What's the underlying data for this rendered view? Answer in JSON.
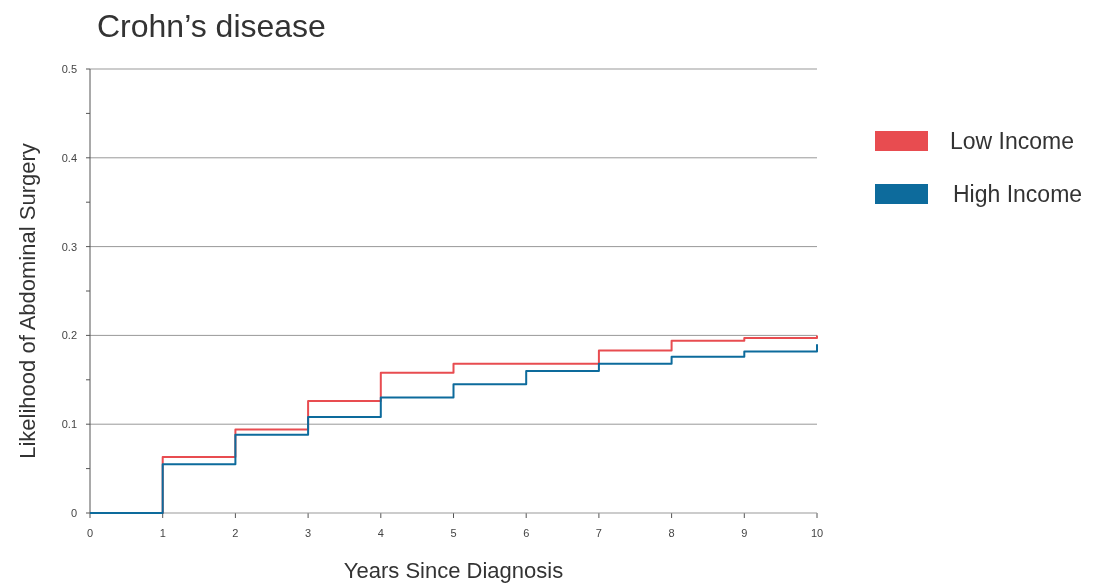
{
  "chart_data": {
    "type": "step",
    "title": "Crohn’s disease",
    "xlabel": "Years Since Diagnosis",
    "ylabel": "Likelihood of Abdominal Surgery",
    "x": [
      0,
      1,
      2,
      3,
      4,
      5,
      6,
      7,
      8,
      9,
      10,
      10
    ],
    "series": [
      {
        "name": "Low Income",
        "color": "#e84c50",
        "values": [
          0,
          0.063,
          0.094,
          0.126,
          0.158,
          0.168,
          0.168,
          0.183,
          0.194,
          0.197,
          0.197,
          0.2
        ]
      },
      {
        "name": "High Income",
        "color": "#0d6b9c",
        "values": [
          0,
          0.055,
          0.088,
          0.108,
          0.13,
          0.145,
          0.16,
          0.168,
          0.176,
          0.182,
          0.182,
          0.19
        ]
      }
    ],
    "xlim": [
      0,
      10
    ],
    "xticks": [
      0,
      1,
      2,
      3,
      4,
      5,
      6,
      7,
      8,
      9,
      10
    ],
    "ylim": [
      0,
      0.5
    ],
    "yticks": [
      0,
      {
        "value": 0.05,
        "label": null
      },
      0.1,
      {
        "value": 0.15,
        "label": null
      },
      0.2,
      {
        "value": 0.25,
        "label": null
      },
      0.3,
      {
        "value": 0.35,
        "label": null
      },
      0.4,
      {
        "value": 0.45,
        "label": null
      },
      0.5
    ],
    "grid": "y",
    "legend": "right",
    "line_style": "solid"
  }
}
